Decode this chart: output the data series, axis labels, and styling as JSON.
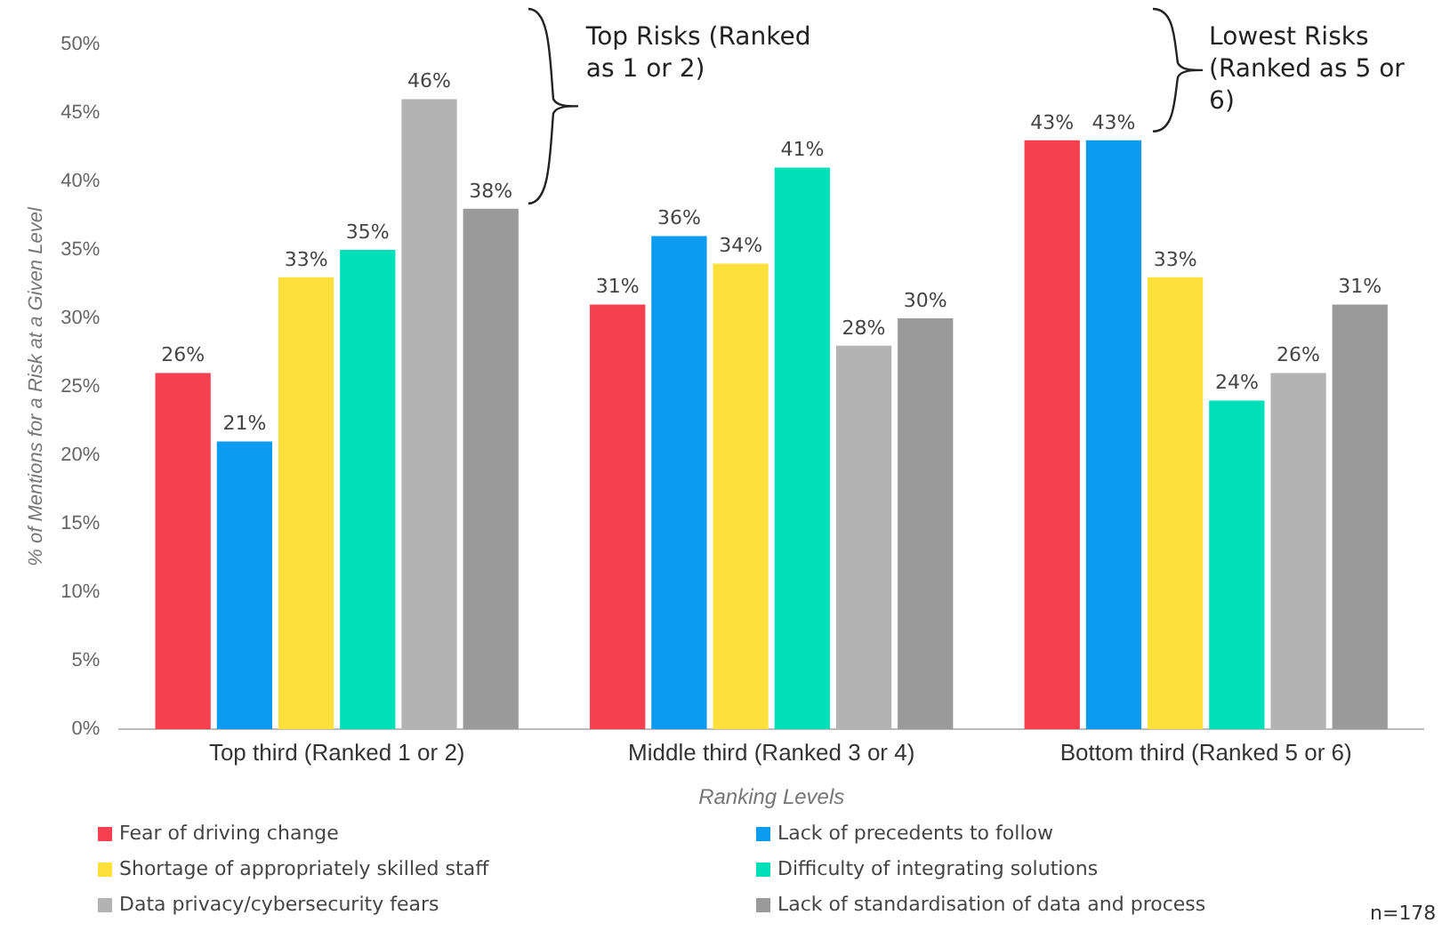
{
  "chart_data": {
    "type": "bar",
    "xlabel": "Ranking Levels",
    "ylabel": "% of Mentions for a Risk at a Given Level",
    "categories": [
      "Top third (Ranked 1 or 2)",
      "Middle third (Ranked 3 or 4)",
      "Bottom third (Ranked 5 or 6)"
    ],
    "series": [
      {
        "name": "Fear of driving change",
        "color": "#f5414f",
        "values": [
          26,
          31,
          43
        ],
        "value_labels": [
          "26%",
          "31%",
          "43%"
        ]
      },
      {
        "name": "Lack of precedents to follow",
        "color": "#0d9bf2",
        "values": [
          21,
          36,
          43
        ],
        "value_labels": [
          "21%",
          "36%",
          "43%"
        ]
      },
      {
        "name": "Shortage of appropriately skilled staff",
        "color": "#fde03b",
        "values": [
          33,
          34,
          33
        ],
        "value_labels": [
          "33%",
          "34%",
          "33%"
        ]
      },
      {
        "name": "Difficulty of integrating solutions",
        "color": "#00e0b8",
        "values": [
          35,
          41,
          24
        ],
        "value_labels": [
          "35%",
          "41%",
          "24%"
        ]
      },
      {
        "name": "Data privacy/cybersecurity fears",
        "color": "#b3b3b3",
        "values": [
          46,
          28,
          26
        ],
        "value_labels": [
          "46%",
          "28%",
          "26%"
        ]
      },
      {
        "name": "Lack of standardisation of data and process",
        "color": "#9a9a9a",
        "values": [
          38,
          30,
          31
        ],
        "value_labels": [
          "38%",
          "30%",
          "31%"
        ]
      }
    ],
    "ylim": [
      0,
      50
    ],
    "yticks": [
      {
        "value": 0,
        "label": "0%"
      },
      {
        "value": 5,
        "label": "5%"
      },
      {
        "value": 10,
        "label": "10%"
      },
      {
        "value": 15,
        "label": "15%"
      },
      {
        "value": 20,
        "label": "20%"
      },
      {
        "value": 25,
        "label": "25%"
      },
      {
        "value": 30,
        "label": "30%"
      },
      {
        "value": 35,
        "label": "35%"
      },
      {
        "value": 40,
        "label": "40%"
      },
      {
        "value": 45,
        "label": "45%"
      },
      {
        "value": 50,
        "label": "50%"
      }
    ],
    "grid": false,
    "legend": "bottom",
    "annotations": [
      "Top Risks (Ranked as 1 or 2)",
      "Lowest Risks (Ranked as 5 or 6)",
      "n=178"
    ]
  }
}
